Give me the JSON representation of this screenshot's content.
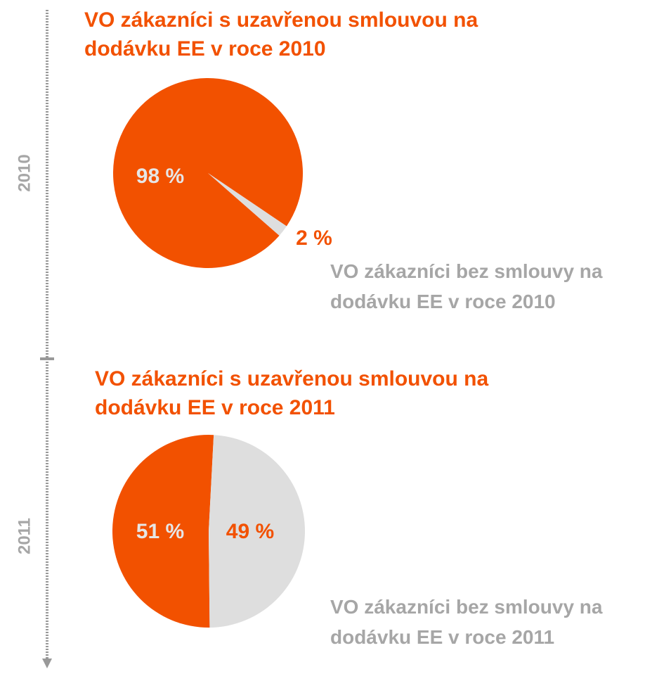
{
  "timeline": {
    "labels": [
      "2010",
      "2011"
    ]
  },
  "chart_data": [
    {
      "type": "pie",
      "categories": [
        "VO zákazníci s uzavřenou smlouvou na dodávku EE v roce 2010",
        "VO zákazníci bez smlouvy na dodávku EE v roce 2010"
      ],
      "values": [
        98,
        2
      ],
      "value_labels": [
        "98 %",
        "2 %"
      ],
      "colors": [
        "#f25100",
        "#dedede"
      ]
    },
    {
      "type": "pie",
      "categories": [
        "VO zákazníci s uzavřenou smlouvou na dodávku EE v roce 2011",
        "VO zákazníci bez smlouvy na dodávku EE v roce 2011"
      ],
      "values": [
        51,
        49
      ],
      "value_labels": [
        "51 %",
        "49 %"
      ],
      "colors": [
        "#f25100",
        "#dedede"
      ]
    }
  ]
}
